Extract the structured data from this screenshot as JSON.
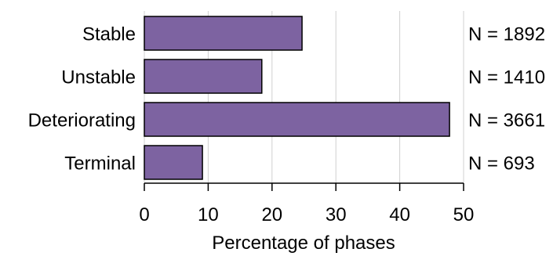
{
  "chart_data": {
    "type": "bar",
    "orientation": "horizontal",
    "categories": [
      "Stable",
      "Unstable",
      "Deteriorating",
      "Terminal"
    ],
    "values": [
      24.7,
      18.4,
      47.8,
      9.1
    ],
    "annotations": [
      "N = 1892",
      "N = 1410",
      "N = 3661",
      "N = 693"
    ],
    "xlabel": "Percentage of phases",
    "xlim": [
      0,
      50
    ],
    "xticks": [
      "0",
      "10",
      "20",
      "30",
      "40",
      "50"
    ],
    "grid": "vertical",
    "colors": {
      "bar": "#7d63a1",
      "edge": "#000000",
      "grid": "#d0d0d0"
    }
  }
}
